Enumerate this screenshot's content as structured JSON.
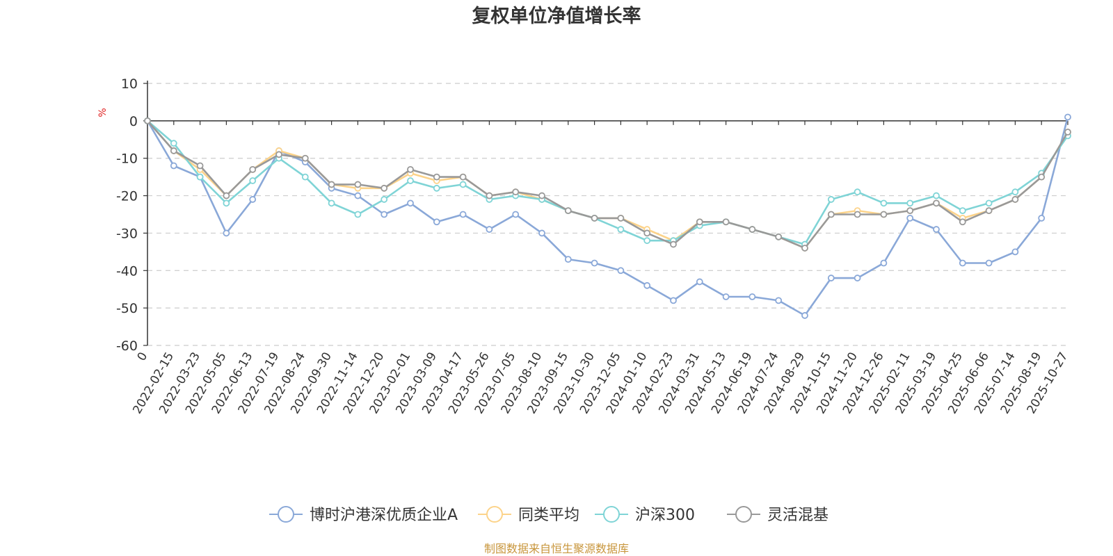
{
  "chart_data": {
    "type": "line",
    "title": "复权单位净值增长率",
    "ylabel": "%",
    "ylim": [
      -60,
      10
    ],
    "yticks": [
      10,
      0,
      -10,
      -20,
      -30,
      -40,
      -50,
      -60
    ],
    "grid": true,
    "legend_position": "bottom",
    "source": "制图数据来自恒生聚源数据库",
    "x": [
      "0",
      "2022-02-15",
      "2022-03-23",
      "2022-05-05",
      "2022-06-13",
      "2022-07-19",
      "2022-08-24",
      "2022-09-30",
      "2022-11-14",
      "2022-12-20",
      "2023-02-01",
      "2023-03-09",
      "2023-04-17",
      "2023-05-26",
      "2023-07-05",
      "2023-08-10",
      "2023-09-15",
      "2023-10-30",
      "2023-12-05",
      "2024-01-10",
      "2024-02-23",
      "2024-03-31",
      "2024-05-13",
      "2024-06-19",
      "2024-07-24",
      "2024-08-29",
      "2024-10-15",
      "2024-11-20",
      "2024-12-26",
      "2025-02-11",
      "2025-03-19",
      "2025-04-25",
      "2025-06-06",
      "2025-07-14",
      "2025-08-19",
      "2025-10-27"
    ],
    "series": [
      {
        "name": "博时沪港深优质企业A",
        "color": "#8aa8d8",
        "values": [
          0,
          -12,
          -15,
          -30,
          -21,
          -8,
          -11,
          -18,
          -20,
          -25,
          -22,
          -27,
          -25,
          -29,
          -25,
          -30,
          -37,
          -38,
          -40,
          -44,
          -48,
          -43,
          -47,
          -47,
          -48,
          -52,
          -42,
          -42,
          -38,
          -26,
          -29,
          -38,
          -38,
          -35,
          -26,
          1
        ]
      },
      {
        "name": "同类平均",
        "color": "#fcd38a",
        "values": [
          0,
          -8,
          -13,
          -20,
          -13,
          -8,
          -10,
          -17,
          -18,
          -18,
          -14,
          -16,
          -15,
          -20,
          -19,
          -21,
          -24,
          -26,
          -26,
          -29,
          -32,
          -27,
          -27,
          -29,
          -31,
          -34,
          -25,
          -24,
          -25,
          -24,
          -22,
          -26,
          -24,
          -21,
          -15,
          -3
        ]
      },
      {
        "name": "沪深300",
        "color": "#7fd4d6",
        "values": [
          0,
          -6,
          -15,
          -22,
          -16,
          -10,
          -15,
          -22,
          -25,
          -21,
          -16,
          -18,
          -17,
          -21,
          -20,
          -21,
          -24,
          -26,
          -29,
          -32,
          -32,
          -28,
          -27,
          -29,
          -31,
          -33,
          -21,
          -19,
          -22,
          -22,
          -20,
          -24,
          -22,
          -19,
          -14,
          -4
        ]
      },
      {
        "name": "灵活混基",
        "color": "#999999",
        "values": [
          0,
          -8,
          -12,
          -20,
          -13,
          -9,
          -10,
          -17,
          -17,
          -18,
          -13,
          -15,
          -15,
          -20,
          -19,
          -20,
          -24,
          -26,
          -26,
          -30,
          -33,
          -27,
          -27,
          -29,
          -31,
          -34,
          -25,
          -25,
          -25,
          -24,
          -22,
          -27,
          -24,
          -21,
          -15,
          -3
        ]
      }
    ]
  }
}
